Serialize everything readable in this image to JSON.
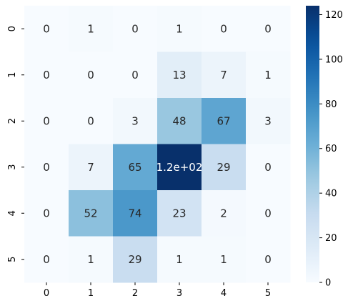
{
  "chart_data": {
    "type": "heatmap",
    "x_tick_labels": [
      "0",
      "1",
      "2",
      "3",
      "4",
      "5"
    ],
    "y_tick_labels": [
      "0",
      "1",
      "2",
      "3",
      "4",
      "5"
    ],
    "values": [
      [
        0,
        1,
        0,
        1,
        0,
        0
      ],
      [
        0,
        0,
        0,
        13,
        7,
        1
      ],
      [
        0,
        0,
        3,
        48,
        67,
        3
      ],
      [
        0,
        7,
        65,
        124,
        29,
        0
      ],
      [
        0,
        52,
        74,
        23,
        2,
        0
      ],
      [
        0,
        1,
        29,
        1,
        1,
        0
      ]
    ],
    "annotations": [
      [
        "0",
        "1",
        "0",
        "1",
        "0",
        "0"
      ],
      [
        "0",
        "0",
        "0",
        "13",
        "7",
        "1"
      ],
      [
        "0",
        "0",
        "3",
        "48",
        "67",
        "3"
      ],
      [
        "0",
        "7",
        "65",
        "1.2e+02",
        "29",
        "0"
      ],
      [
        "0",
        "52",
        "74",
        "23",
        "2",
        "0"
      ],
      [
        "0",
        "1",
        "29",
        "1",
        "1",
        "0"
      ]
    ],
    "colormap": "Blues",
    "vmin": 0,
    "vmax": 124,
    "colorbar_ticks": [
      0,
      20,
      40,
      60,
      80,
      100,
      120
    ],
    "colorbar_tick_labels": [
      "0",
      "20",
      "40",
      "60",
      "80",
      "100",
      "120"
    ],
    "title": "",
    "xlabel": "",
    "ylabel": ""
  }
}
